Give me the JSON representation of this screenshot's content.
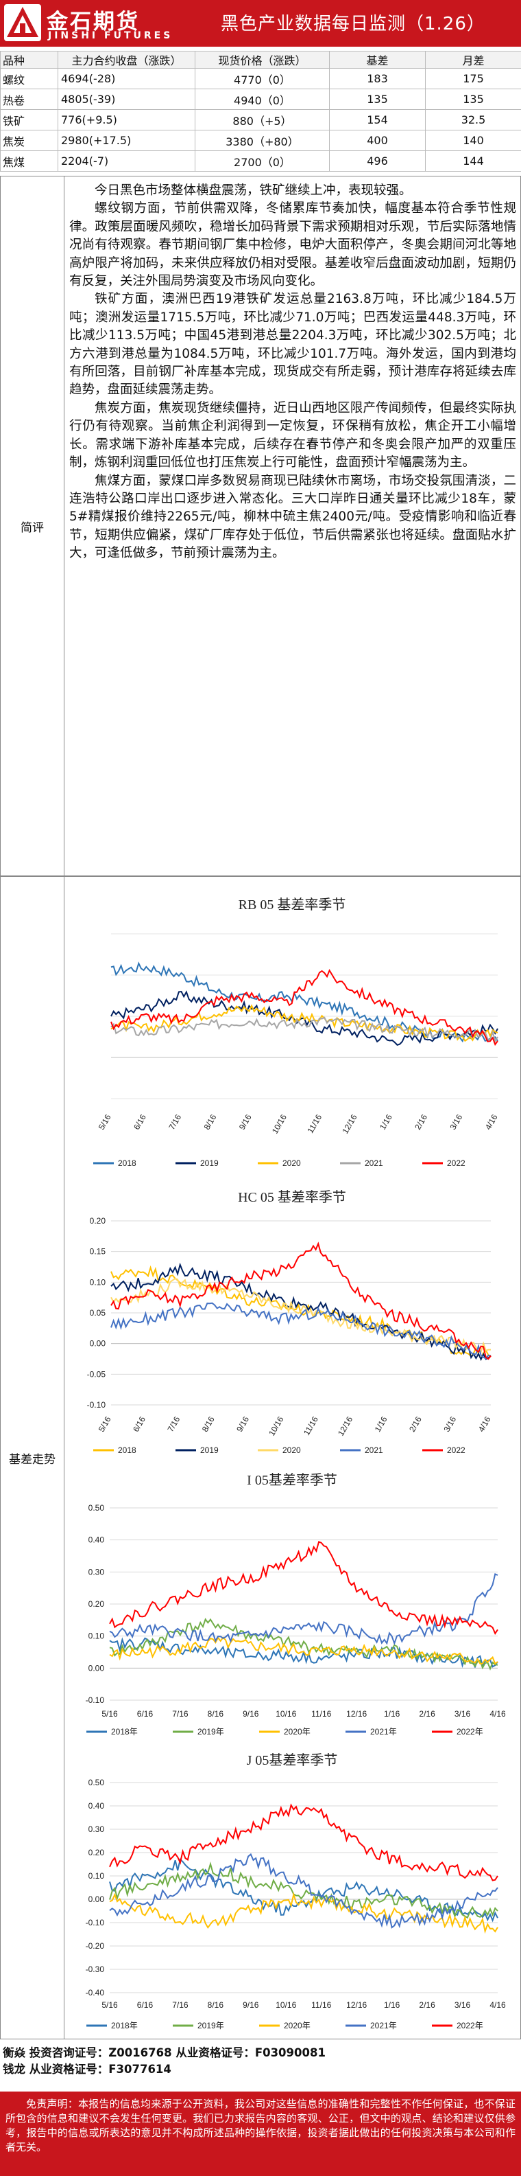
{
  "header": {
    "logo_cn": "金石期货",
    "logo_en": "JINSHI FUTURES",
    "title": "黑色产业数据每日监测（1.26）"
  },
  "price_table": {
    "columns": [
      "品种",
      "主力合约收盘（涨跌）",
      "现货价格（涨跌）",
      "基差",
      "月差"
    ],
    "rows": [
      [
        "螺纹",
        "4694(-28)",
        "4770（0）",
        "183",
        "175"
      ],
      [
        "热卷",
        "4805(-39)",
        "4940（0）",
        "135",
        "135"
      ],
      [
        "铁矿",
        "776(+9.5)",
        "880（+5）",
        "154",
        "32.5"
      ],
      [
        "焦炭",
        "2980(+17.5)",
        "3380（+80）",
        "400",
        "140"
      ],
      [
        "焦煤",
        "2204(-7)",
        "2700（0）",
        "496",
        "144"
      ]
    ]
  },
  "commentary": {
    "label": "简评",
    "paragraphs": [
      "今日黑色市场整体横盘震荡，铁矿继续上冲，表现较强。",
      "螺纹钢方面，节前供需双降，冬储累库节奏加快，幅度基本符合季节性规律。政策层面暖风频吹，稳增长加码背景下需求预期相对乐观，节后实际落地情况尚有待观察。春节期间钢厂集中检修，电炉大面积停产，冬奥会期间河北等地高炉限产将加码，未来供应释放仍相对受限。基差收窄后盘面波动加剧，短期仍有反复，关注外围局势演变及市场风向变化。",
      "铁矿方面，澳洲巴西19港铁矿发运总量2163.8万吨，环比减少184.5万吨；澳洲发运量1715.5万吨，环比减少71.0万吨；巴西发运量448.3万吨，环比减少113.5万吨；中国45港到港总量2204.3万吨，环比减少302.5万吨；北方六港到港总量为1084.5万吨，环比减少101.7万吨。海外发运，国内到港均有所回落，目前钢厂补库基本完成，现货成交有所走弱，预计港库存将延续去库趋势，盘面延续震荡走势。",
      "焦炭方面，焦炭现货继续僵持，近日山西地区限产传闻频传，但最终实际执行仍有待观察。当前焦企利润得到一定恢复，环保稍有放松，焦企开工小幅增长。需求端下游补库基本完成，后续存在春节停产和冬奥会限产加严的双重压制，炼钢利润重回低位也打压焦炭上行可能性，盘面预计窄幅震荡为主。",
      "焦煤方面，蒙煤口岸多数贸易商现已陆续休市离场，市场交投氛围清淡，二连浩特公路口岸出口逐步进入常态化。三大口岸昨日通关量环比减少18车，蒙5#精煤报价维持2265元/吨，柳林中硫主焦2400元/吨。受疫情影响和临近春节，短期供应偏紧，煤矿厂库存处于低位，节后供需紧张也将延续。盘面贴水扩大，可逢低做多，节前预计震荡为主。"
    ]
  },
  "basis_section": {
    "label": "基差走势"
  },
  "chart_data": [
    {
      "type": "line",
      "title": "RB 05 基差率季节",
      "x": [
        "5/16",
        "6/16",
        "7/16",
        "8/16",
        "9/16",
        "10/16",
        "11/16",
        "12/16",
        "1/16",
        "2/16",
        "3/16",
        "4/16"
      ],
      "ylim": [
        -0.1,
        0.3
      ],
      "yticks": [],
      "series": [
        {
          "name": "2018",
          "color": "#2e75b6",
          "values": [
            0.21,
            0.22,
            0.2,
            0.16,
            0.14,
            0.15,
            0.13,
            0.11,
            0.08,
            0.06,
            0.05,
            0.04
          ]
        },
        {
          "name": "2019",
          "color": "#002060",
          "values": [
            0.1,
            0.12,
            0.15,
            0.13,
            0.12,
            0.1,
            0.07,
            0.06,
            0.04,
            0.05,
            0.06,
            0.07
          ]
        },
        {
          "name": "2020",
          "color": "#ffc000",
          "values": [
            0.08,
            0.07,
            0.09,
            0.11,
            0.12,
            0.1,
            0.09,
            0.08,
            0.07,
            0.06,
            0.05,
            0.06
          ]
        },
        {
          "name": "2021",
          "color": "#a6a6a6",
          "values": [
            0.07,
            0.06,
            0.07,
            0.08,
            0.09,
            0.08,
            0.09,
            0.08,
            0.07,
            0.06,
            0.06,
            0.05
          ]
        },
        {
          "name": "2022",
          "color": "#ff0000",
          "values": [
            0.08,
            0.1,
            0.09,
            0.14,
            0.15,
            0.13,
            0.21,
            0.16,
            0.12,
            0.09,
            0.07,
            0.04
          ]
        }
      ]
    },
    {
      "type": "line",
      "title": "HC 05 基差率季节",
      "x": [
        "5/16",
        "6/16",
        "7/16",
        "8/16",
        "9/16",
        "10/16",
        "11/16",
        "12/16",
        "1/16",
        "2/16",
        "3/16",
        "4/16"
      ],
      "ylim": [
        -0.1,
        0.2
      ],
      "yticks": [
        "0.20",
        "0.15",
        "0.10",
        "0.05",
        "0.00",
        "-0.05",
        "-0.10"
      ],
      "series": [
        {
          "name": "2018",
          "color": "#ffc000",
          "values": [
            0.11,
            0.12,
            0.1,
            0.09,
            0.07,
            0.06,
            0.05,
            0.04,
            0.03,
            0.01,
            -0.01,
            -0.02
          ]
        },
        {
          "name": "2019",
          "color": "#002060",
          "values": [
            0.09,
            0.1,
            0.12,
            0.11,
            0.09,
            0.07,
            0.06,
            0.04,
            0.02,
            0.01,
            -0.01,
            -0.02
          ]
        },
        {
          "name": "2020",
          "color": "#ffd966",
          "values": [
            0.07,
            0.08,
            0.1,
            0.09,
            0.08,
            0.06,
            0.05,
            0.03,
            0.02,
            0.01,
            0.0,
            -0.01
          ]
        },
        {
          "name": "2021",
          "color": "#4472c4",
          "values": [
            0.03,
            0.04,
            0.05,
            0.06,
            0.05,
            0.04,
            0.05,
            0.04,
            0.02,
            0.01,
            0.0,
            -0.02
          ]
        },
        {
          "name": "2022",
          "color": "#ff0000",
          "values": [
            0.06,
            0.08,
            0.07,
            0.09,
            0.11,
            0.12,
            0.16,
            0.09,
            0.05,
            0.03,
            0.01,
            -0.02
          ]
        }
      ]
    },
    {
      "type": "line",
      "title": "I 05基差率季节",
      "x": [
        "5/16",
        "6/16",
        "7/16",
        "8/16",
        "9/16",
        "10/16",
        "11/16",
        "12/16",
        "1/16",
        "2/16",
        "3/16",
        "4/16"
      ],
      "ylim": [
        -0.1,
        0.5
      ],
      "yticks": [
        "0.50",
        "0.40",
        "0.30",
        "0.20",
        "0.10",
        "0.00",
        "-0.10"
      ],
      "series": [
        {
          "name": "2018年",
          "color": "#2e75b6",
          "values": [
            0.07,
            0.08,
            0.06,
            0.05,
            0.04,
            0.04,
            0.03,
            0.04,
            0.05,
            0.03,
            0.02,
            0.02
          ]
        },
        {
          "name": "2019年",
          "color": "#70ad47",
          "values": [
            0.05,
            0.07,
            0.12,
            0.14,
            0.1,
            0.08,
            0.06,
            0.05,
            0.06,
            0.04,
            0.02,
            0.01
          ]
        },
        {
          "name": "2020年",
          "color": "#ffc000",
          "values": [
            0.04,
            0.05,
            0.06,
            0.08,
            0.07,
            0.06,
            0.05,
            0.06,
            0.05,
            0.04,
            0.03,
            0.02
          ]
        },
        {
          "name": "2021年",
          "color": "#4472c4",
          "values": [
            0.1,
            0.12,
            0.11,
            0.09,
            0.1,
            0.12,
            0.13,
            0.11,
            0.09,
            0.12,
            0.14,
            0.29
          ]
        },
        {
          "name": "2022年",
          "color": "#ff0000",
          "values": [
            0.14,
            0.18,
            0.22,
            0.26,
            0.28,
            0.33,
            0.38,
            0.25,
            0.18,
            0.15,
            0.14,
            0.12
          ]
        }
      ]
    },
    {
      "type": "line",
      "title": "J 05基差率季节",
      "x": [
        "5/16",
        "6/16",
        "7/16",
        "8/16",
        "9/16",
        "10/16",
        "11/16",
        "12/16",
        "1/16",
        "2/16",
        "3/16",
        "4/16"
      ],
      "ylim": [
        -0.4,
        0.5
      ],
      "yticks": [
        "0.50",
        "0.40",
        "0.30",
        "0.20",
        "0.10",
        "0.00",
        "-0.10",
        "-0.20",
        "-0.30",
        "-0.40"
      ],
      "series": [
        {
          "name": "2018年",
          "color": "#2e75b6",
          "values": [
            0.05,
            0.1,
            0.15,
            0.08,
            0.0,
            -0.05,
            0.02,
            0.05,
            0.03,
            -0.02,
            -0.05,
            -0.08
          ]
        },
        {
          "name": "2019年",
          "color": "#70ad47",
          "values": [
            0.02,
            0.06,
            0.1,
            0.13,
            0.08,
            0.04,
            0.01,
            -0.02,
            0.0,
            -0.03,
            -0.06,
            -0.05
          ]
        },
        {
          "name": "2020年",
          "color": "#ffc000",
          "values": [
            0.0,
            -0.05,
            -0.08,
            -0.1,
            -0.05,
            0.0,
            -0.02,
            -0.04,
            -0.06,
            -0.08,
            -0.1,
            -0.12
          ]
        },
        {
          "name": "2021年",
          "color": "#4472c4",
          "values": [
            -0.05,
            -0.02,
            0.05,
            0.1,
            0.18,
            0.1,
            0.02,
            -0.05,
            -0.1,
            -0.08,
            -0.02,
            0.05
          ]
        },
        {
          "name": "2022年",
          "color": "#ff0000",
          "values": [
            0.15,
            0.22,
            0.18,
            0.25,
            0.3,
            0.38,
            0.36,
            0.24,
            0.17,
            0.14,
            0.12,
            0.1
          ]
        }
      ]
    }
  ],
  "analysts": {
    "line1": "衡焱 投资咨询证号：Z0016768 从业资格证号：F03090081",
    "line2": "钱龙 从业资格证号：F3077614"
  },
  "disclaimer": "免责声明：本报告的信息均来源于公开资料，我公司对这些信息的准确性和完整性不作任何保证，也不保证所包含的信息和建议不会发生任何变更。我们已力求报告内容的客观、公正，但文中的观点、结论和建议仅供参考，报告中的信息或所表达的意见并不构成所述品种的操作依据，投资者据此做出的任何投资决策与本公司和作者无关。",
  "colors": {
    "brand_red": "#c8161d"
  }
}
